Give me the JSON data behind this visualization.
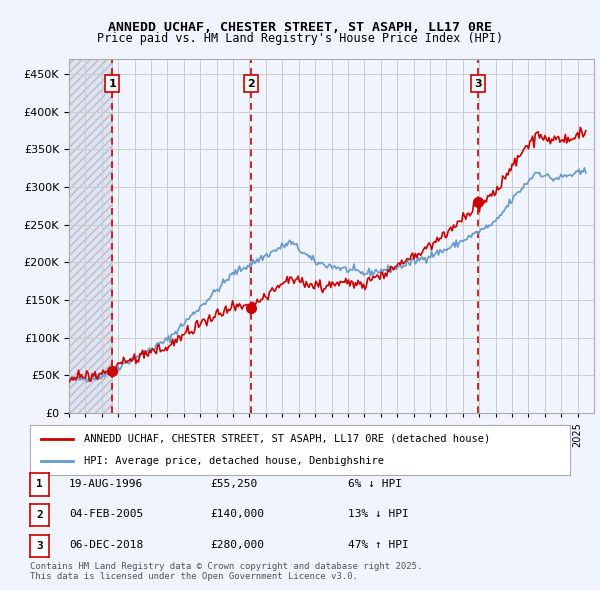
{
  "title": "ANNEDD UCHAF, CHESTER STREET, ST ASAPH, LL17 0RE",
  "subtitle": "Price paid vs. HM Land Registry's House Price Index (HPI)",
  "ylim": [
    0,
    470000
  ],
  "yticks": [
    0,
    50000,
    100000,
    150000,
    200000,
    250000,
    300000,
    350000,
    400000,
    450000
  ],
  "ytick_labels": [
    "£0",
    "£50K",
    "£100K",
    "£150K",
    "£200K",
    "£250K",
    "£300K",
    "£350K",
    "£400K",
    "£450K"
  ],
  "xlim_start": 1994.0,
  "xlim_end": 2026.0,
  "hpi_color": "#6699cc",
  "price_color": "#cc0000",
  "sale_marker_color": "#cc0000",
  "background_color": "#f0f4ff",
  "plot_bg_color": "#ffffff",
  "grid_color": "#cccccc",
  "sale_points": [
    {
      "year": 1996.635,
      "price": 55250,
      "label": "1"
    },
    {
      "year": 2005.085,
      "price": 140000,
      "label": "2"
    },
    {
      "year": 2018.92,
      "price": 280000,
      "label": "3"
    }
  ],
  "legend_entries": [
    {
      "color": "#cc0000",
      "label": "ANNEDD UCHAF, CHESTER STREET, ST ASAPH, LL17 0RE (detached house)"
    },
    {
      "color": "#6699cc",
      "label": "HPI: Average price, detached house, Denbighshire"
    }
  ],
  "table_rows": [
    {
      "num": "1",
      "date": "19-AUG-1996",
      "price": "£55,250",
      "hpi": "6% ↓ HPI"
    },
    {
      "num": "2",
      "date": "04-FEB-2005",
      "price": "£140,000",
      "hpi": "13% ↓ HPI"
    },
    {
      "num": "3",
      "date": "06-DEC-2018",
      "price": "£280,000",
      "hpi": "47% ↑ HPI"
    }
  ],
  "footnote": "Contains HM Land Registry data © Crown copyright and database right 2025.\nThis data is licensed under the Open Government Licence v3.0.",
  "vline_color": "#cc0000",
  "hatched_bg": true,
  "hatched_end_year": 1996.635
}
